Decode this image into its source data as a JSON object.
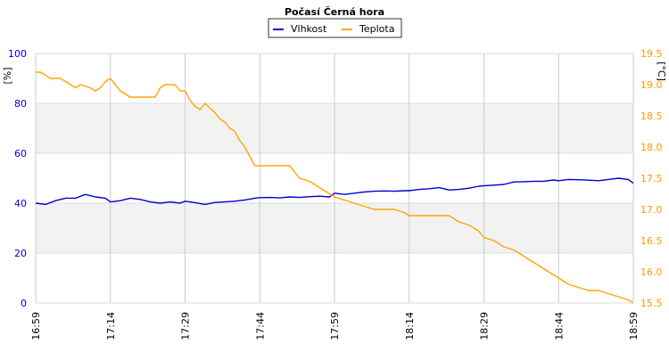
{
  "chart_data": {
    "type": "line",
    "title": "Počasí Černá hora",
    "x_ticks": [
      "16:59",
      "17:14",
      "17:29",
      "17:44",
      "17:59",
      "18:14",
      "18:29",
      "18:44",
      "18:59"
    ],
    "y_left": {
      "label": "[%]",
      "range": [
        0,
        100
      ],
      "ticks": [
        "0",
        "20",
        "40",
        "60",
        "80",
        "100"
      ],
      "color": "#0000cc"
    },
    "y_right": {
      "label": "[°C]",
      "range": [
        15.5,
        19.5
      ],
      "ticks": [
        "15.5",
        "16.0",
        "16.5",
        "17.0",
        "17.5",
        "18.0",
        "18.5",
        "19.0",
        "19.5"
      ],
      "color": "#ff9900"
    },
    "grid": true,
    "legend": "top-center",
    "series": [
      {
        "name": "Vlhkost",
        "axis": "left",
        "color": "#0000cc",
        "time": [
          "16:59",
          "17:01",
          "17:03",
          "17:05",
          "17:07",
          "17:09",
          "17:11",
          "17:13",
          "17:14",
          "17:16",
          "17:18",
          "17:20",
          "17:22",
          "17:24",
          "17:26",
          "17:28",
          "17:29",
          "17:31",
          "17:33",
          "17:35",
          "17:37",
          "17:39",
          "17:41",
          "17:43",
          "17:44",
          "17:46",
          "17:48",
          "17:50",
          "17:52",
          "17:54",
          "17:56",
          "17:58",
          "17:59",
          "18:01",
          "18:03",
          "18:05",
          "18:07",
          "18:09",
          "18:11",
          "18:13",
          "18:14",
          "18:16",
          "18:18",
          "18:20",
          "18:22",
          "18:24",
          "18:26",
          "18:28",
          "18:29",
          "18:31",
          "18:33",
          "18:35",
          "18:37",
          "18:39",
          "18:41",
          "18:43",
          "18:44",
          "18:46",
          "18:48",
          "18:50",
          "18:52",
          "18:54",
          "18:56",
          "18:58",
          "18:59"
        ],
        "values": [
          40,
          39.5,
          41,
          42,
          42,
          43.5,
          42.5,
          42,
          40.5,
          41,
          42,
          41.5,
          40.5,
          40,
          40.5,
          40,
          40.8,
          40.2,
          39.5,
          40.3,
          40.5,
          40.8,
          41.3,
          42,
          42.2,
          42.3,
          42.1,
          42.5,
          42.3,
          42.6,
          42.8,
          42.5,
          44,
          43.5,
          44,
          44.5,
          44.8,
          44.9,
          44.8,
          45,
          45,
          45.5,
          45.8,
          46.2,
          45.3,
          45.5,
          46,
          46.8,
          47,
          47.2,
          47.5,
          48.5,
          48.6,
          48.8,
          48.8,
          49.3,
          49,
          49.5,
          49.4,
          49.2,
          49,
          49.5,
          50,
          49.5,
          48
        ]
      },
      {
        "name": "Teplota",
        "axis": "right",
        "color": "#ffa500",
        "time": [
          "16:59",
          "17:00",
          "17:02",
          "17:04",
          "17:05",
          "17:06",
          "17:07",
          "17:08",
          "17:10",
          "17:11",
          "17:12",
          "17:13",
          "17:14",
          "17:16",
          "17:18",
          "17:19",
          "17:20",
          "17:21",
          "17:22",
          "17:23",
          "17:24",
          "17:25",
          "17:26",
          "17:27",
          "17:28",
          "17:29",
          "17:30",
          "17:31",
          "17:32",
          "17:33",
          "17:35",
          "17:36",
          "17:37",
          "17:38",
          "17:39",
          "17:40",
          "17:41",
          "17:42",
          "17:43",
          "17:44",
          "17:46",
          "17:48",
          "17:50",
          "17:52",
          "17:54",
          "17:56",
          "17:58",
          "17:59",
          "18:01",
          "18:03",
          "18:05",
          "18:07",
          "18:09",
          "18:11",
          "18:13",
          "18:14",
          "18:16",
          "18:18",
          "18:20",
          "18:22",
          "18:24",
          "18:26",
          "18:28",
          "18:29",
          "18:31",
          "18:33",
          "18:35",
          "18:37",
          "18:39",
          "18:41",
          "18:43",
          "18:44",
          "18:46",
          "18:48",
          "18:50",
          "18:52",
          "18:54",
          "18:56",
          "18:58",
          "18:59"
        ],
        "values": [
          19.2,
          19.2,
          19.1,
          19.1,
          19.05,
          19.0,
          18.95,
          19.0,
          18.95,
          18.9,
          18.95,
          19.05,
          19.1,
          18.9,
          18.8,
          18.8,
          18.8,
          18.8,
          18.8,
          18.8,
          18.95,
          19.0,
          19.0,
          19.0,
          18.9,
          18.9,
          18.75,
          18.65,
          18.6,
          18.7,
          18.55,
          18.45,
          18.4,
          18.3,
          18.25,
          18.1,
          18.0,
          17.85,
          17.7,
          17.7,
          17.7,
          17.7,
          17.7,
          17.5,
          17.45,
          17.35,
          17.25,
          17.2,
          17.15,
          17.1,
          17.05,
          17.0,
          17.0,
          17.0,
          16.95,
          16.9,
          16.9,
          16.9,
          16.9,
          16.9,
          16.8,
          16.75,
          16.65,
          16.55,
          16.5,
          16.4,
          16.35,
          16.25,
          16.15,
          16.05,
          15.95,
          15.9,
          15.8,
          15.75,
          15.7,
          15.7,
          15.65,
          15.6,
          15.55,
          15.5
        ]
      }
    ]
  }
}
